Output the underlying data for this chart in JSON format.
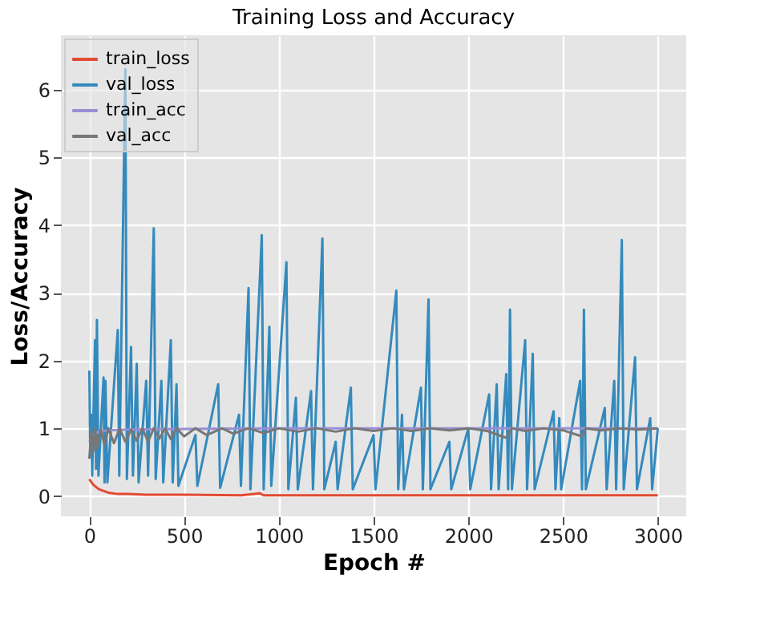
{
  "chart_data": {
    "type": "line",
    "title": "Training Loss and Accuracy",
    "xlabel": "Epoch #",
    "ylabel": "Loss/Accuracy",
    "xlim": [
      -150,
      3150
    ],
    "ylim": [
      -0.3,
      6.8
    ],
    "xticks": [
      0,
      500,
      1000,
      1500,
      2000,
      2500,
      3000
    ],
    "yticks": [
      0,
      1,
      2,
      3,
      4,
      5,
      6
    ],
    "grid": true,
    "legend": "top left",
    "marker": "none",
    "line_style": "solid",
    "series": [
      {
        "name": "train_loss",
        "color": "#e24a33",
        "x": [
          0,
          20,
          50,
          100,
          150,
          200,
          300,
          500,
          800,
          900,
          920,
          1000,
          1500,
          2000,
          2500,
          3000
        ],
        "values": [
          0.25,
          0.17,
          0.1,
          0.05,
          0.03,
          0.03,
          0.02,
          0.02,
          0.01,
          0.04,
          0.01,
          0.01,
          0.01,
          0.01,
          0.01,
          0.01
        ]
      },
      {
        "name": "val_loss",
        "color": "#348abd",
        "x": [
          0,
          5,
          10,
          15,
          30,
          35,
          40,
          48,
          75,
          80,
          85,
          95,
          150,
          158,
          190,
          198,
          220,
          230,
          250,
          260,
          300,
          310,
          340,
          350,
          380,
          390,
          430,
          440,
          460,
          470,
          560,
          570,
          680,
          690,
          790,
          800,
          840,
          850,
          910,
          920,
          950,
          960,
          1040,
          1050,
          1090,
          1100,
          1170,
          1180,
          1230,
          1240,
          1300,
          1310,
          1380,
          1390,
          1500,
          1510,
          1620,
          1630,
          1650,
          1660,
          1750,
          1760,
          1790,
          1800,
          1900,
          1910,
          2000,
          2010,
          2110,
          2120,
          2150,
          2160,
          2200,
          2210,
          2220,
          2230,
          2300,
          2310,
          2340,
          2350,
          2450,
          2460,
          2480,
          2490,
          2590,
          2600,
          2610,
          2620,
          2720,
          2730,
          2770,
          2780,
          2810,
          2820,
          2880,
          2890,
          2960,
          2970,
          3000
        ],
        "values": [
          1.85,
          0.6,
          1.2,
          0.3,
          2.3,
          0.4,
          2.6,
          0.3,
          1.75,
          0.2,
          1.7,
          0.2,
          2.45,
          0.3,
          6.3,
          0.25,
          2.2,
          0.3,
          1.95,
          0.2,
          1.7,
          0.3,
          3.95,
          0.25,
          1.7,
          0.2,
          2.3,
          0.2,
          1.65,
          0.15,
          0.9,
          0.15,
          1.65,
          0.12,
          1.2,
          0.15,
          3.07,
          0.1,
          3.85,
          0.1,
          2.5,
          0.15,
          3.45,
          0.1,
          1.45,
          0.1,
          1.55,
          0.1,
          3.8,
          0.1,
          0.8,
          0.1,
          1.6,
          0.1,
          0.9,
          0.1,
          3.03,
          0.1,
          1.2,
          0.1,
          1.6,
          0.1,
          2.9,
          0.1,
          0.8,
          0.1,
          1.0,
          0.1,
          1.5,
          0.1,
          1.65,
          0.1,
          1.8,
          0.1,
          2.75,
          0.1,
          2.3,
          0.1,
          2.1,
          0.1,
          1.25,
          0.1,
          1.15,
          0.1,
          1.7,
          0.1,
          2.75,
          0.1,
          1.3,
          0.1,
          1.7,
          0.1,
          3.78,
          0.1,
          2.05,
          0.1,
          1.15,
          0.1,
          1.0
        ]
      },
      {
        "name": "train_acc",
        "color": "#988ed5",
        "x": [
          0,
          20,
          50,
          100,
          200,
          500,
          1000,
          1500,
          2000,
          2500,
          3000
        ],
        "values": [
          0.8,
          0.9,
          0.95,
          0.97,
          0.98,
          0.99,
          1.0,
          1.0,
          1.0,
          1.0,
          1.0
        ]
      },
      {
        "name": "val_acc",
        "color": "#777777",
        "x": [
          0,
          10,
          20,
          30,
          40,
          60,
          80,
          100,
          130,
          160,
          190,
          220,
          250,
          280,
          310,
          340,
          370,
          400,
          430,
          460,
          500,
          560,
          620,
          700,
          760,
          840,
          920,
          1000,
          1100,
          1200,
          1300,
          1400,
          1500,
          1600,
          1700,
          1800,
          1900,
          2000,
          2100,
          2200,
          2230,
          2300,
          2400,
          2500,
          2600,
          2620,
          2700,
          2800,
          2900,
          3000
        ],
        "values": [
          0.55,
          0.95,
          0.65,
          1.0,
          0.7,
          0.98,
          0.75,
          1.0,
          0.78,
          1.0,
          0.8,
          0.98,
          0.82,
          1.0,
          0.8,
          1.0,
          0.85,
          1.0,
          0.84,
          1.0,
          0.88,
          1.0,
          0.9,
          1.0,
          0.92,
          1.0,
          0.93,
          1.0,
          0.95,
          1.0,
          0.95,
          1.0,
          0.96,
          1.0,
          0.96,
          1.0,
          0.97,
          1.0,
          0.96,
          0.86,
          1.0,
          0.96,
          1.0,
          0.97,
          0.88,
          1.0,
          0.97,
          1.0,
          0.98,
          1.0
        ]
      }
    ]
  }
}
